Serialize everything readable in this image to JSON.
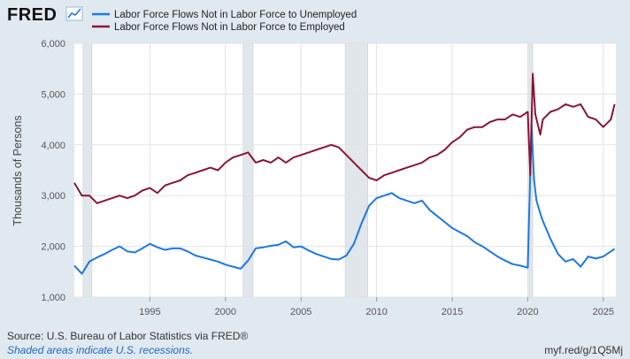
{
  "header": {
    "logo_text": "FRED",
    "logo_icon": "chart-line-icon"
  },
  "footer": {
    "source": "Source: U.S. Bureau of Labor Statistics via FRED®",
    "note": "Shaded areas indicate U.S. recessions.",
    "short_link": "myf.red/g/1Q5Mj"
  },
  "colors": {
    "background": "#e1e9f0",
    "plot_bg": "#ffffff",
    "grid": "#dfe3e8",
    "recession": "#e1e6ea",
    "unemployed": "#1f78e0",
    "employed": "#8a1538"
  },
  "chart_data": {
    "type": "line",
    "title": "",
    "xlabel": "",
    "ylabel": "Thousands of Persons",
    "xlim": [
      1990.0,
      2025.83
    ],
    "ylim": [
      1000,
      6000
    ],
    "x_ticks": [
      1995,
      2000,
      2005,
      2010,
      2015,
      2020,
      2025
    ],
    "y_ticks": [
      {
        "value": 1000,
        "label": "1,000"
      },
      {
        "value": 2000,
        "label": "2,000"
      },
      {
        "value": 3000,
        "label": "3,000"
      },
      {
        "value": 4000,
        "label": "4,000"
      },
      {
        "value": 5000,
        "label": "5,000"
      },
      {
        "value": 6000,
        "label": "6,000"
      }
    ],
    "grid": true,
    "legend_position": "top-left",
    "recessions": [
      {
        "start": 1990.58,
        "end": 1991.17
      },
      {
        "start": 2001.17,
        "end": 2001.83
      },
      {
        "start": 2007.92,
        "end": 2009.42
      },
      {
        "start": 2020.08,
        "end": 2020.33
      }
    ],
    "series": [
      {
        "name": "Labor Force Flows Not in Labor Force to Unemployed",
        "color": "#1f78e0",
        "points": [
          [
            1990.0,
            1620
          ],
          [
            1990.5,
            1460
          ],
          [
            1991.0,
            1700
          ],
          [
            1991.5,
            1780
          ],
          [
            1992.0,
            1850
          ],
          [
            1992.5,
            1930
          ],
          [
            1993.0,
            2000
          ],
          [
            1993.5,
            1900
          ],
          [
            1994.0,
            1880
          ],
          [
            1994.5,
            1960
          ],
          [
            1995.0,
            2050
          ],
          [
            1995.5,
            1980
          ],
          [
            1996.0,
            1930
          ],
          [
            1996.5,
            1960
          ],
          [
            1997.0,
            1960
          ],
          [
            1997.5,
            1900
          ],
          [
            1998.0,
            1820
          ],
          [
            1998.5,
            1780
          ],
          [
            1999.0,
            1740
          ],
          [
            1999.5,
            1700
          ],
          [
            2000.0,
            1640
          ],
          [
            2000.5,
            1600
          ],
          [
            2001.0,
            1560
          ],
          [
            2001.5,
            1720
          ],
          [
            2002.0,
            1960
          ],
          [
            2002.5,
            1980
          ],
          [
            2003.0,
            2010
          ],
          [
            2003.5,
            2030
          ],
          [
            2004.0,
            2100
          ],
          [
            2004.5,
            1980
          ],
          [
            2005.0,
            2000
          ],
          [
            2005.5,
            1920
          ],
          [
            2006.0,
            1850
          ],
          [
            2006.5,
            1800
          ],
          [
            2007.0,
            1750
          ],
          [
            2007.5,
            1740
          ],
          [
            2008.0,
            1820
          ],
          [
            2008.5,
            2050
          ],
          [
            2009.0,
            2450
          ],
          [
            2009.5,
            2800
          ],
          [
            2010.0,
            2950
          ],
          [
            2010.5,
            3000
          ],
          [
            2011.0,
            3050
          ],
          [
            2011.5,
            2950
          ],
          [
            2012.0,
            2900
          ],
          [
            2012.5,
            2850
          ],
          [
            2013.0,
            2900
          ],
          [
            2013.5,
            2720
          ],
          [
            2014.0,
            2600
          ],
          [
            2014.5,
            2480
          ],
          [
            2015.0,
            2360
          ],
          [
            2015.5,
            2280
          ],
          [
            2016.0,
            2200
          ],
          [
            2016.5,
            2080
          ],
          [
            2017.0,
            2000
          ],
          [
            2017.5,
            1900
          ],
          [
            2018.0,
            1800
          ],
          [
            2018.5,
            1720
          ],
          [
            2019.0,
            1650
          ],
          [
            2019.5,
            1620
          ],
          [
            2020.0,
            1580
          ],
          [
            2020.25,
            4400
          ],
          [
            2020.42,
            3300
          ],
          [
            2020.58,
            2900
          ],
          [
            2020.83,
            2650
          ],
          [
            2021.0,
            2500
          ],
          [
            2021.5,
            2150
          ],
          [
            2022.0,
            1850
          ],
          [
            2022.5,
            1700
          ],
          [
            2023.0,
            1750
          ],
          [
            2023.5,
            1600
          ],
          [
            2024.0,
            1800
          ],
          [
            2024.5,
            1760
          ],
          [
            2025.0,
            1800
          ],
          [
            2025.5,
            1900
          ],
          [
            2025.75,
            1950
          ]
        ]
      },
      {
        "name": "Labor Force Flows Not in Labor Force to Employed",
        "color": "#8a1538",
        "points": [
          [
            1990.0,
            3250
          ],
          [
            1990.5,
            3000
          ],
          [
            1991.0,
            3000
          ],
          [
            1991.5,
            2850
          ],
          [
            1992.0,
            2900
          ],
          [
            1992.5,
            2950
          ],
          [
            1993.0,
            3000
          ],
          [
            1993.5,
            2950
          ],
          [
            1994.0,
            3000
          ],
          [
            1994.5,
            3100
          ],
          [
            1995.0,
            3150
          ],
          [
            1995.5,
            3050
          ],
          [
            1996.0,
            3200
          ],
          [
            1996.5,
            3250
          ],
          [
            1997.0,
            3300
          ],
          [
            1997.5,
            3400
          ],
          [
            1998.0,
            3450
          ],
          [
            1998.5,
            3500
          ],
          [
            1999.0,
            3550
          ],
          [
            1999.5,
            3500
          ],
          [
            2000.0,
            3650
          ],
          [
            2000.5,
            3750
          ],
          [
            2001.0,
            3800
          ],
          [
            2001.5,
            3850
          ],
          [
            2002.0,
            3650
          ],
          [
            2002.5,
            3700
          ],
          [
            2003.0,
            3650
          ],
          [
            2003.5,
            3750
          ],
          [
            2004.0,
            3650
          ],
          [
            2004.5,
            3750
          ],
          [
            2005.0,
            3800
          ],
          [
            2005.5,
            3850
          ],
          [
            2006.0,
            3900
          ],
          [
            2006.5,
            3950
          ],
          [
            2007.0,
            4000
          ],
          [
            2007.5,
            3950
          ],
          [
            2008.0,
            3800
          ],
          [
            2008.5,
            3650
          ],
          [
            2009.0,
            3500
          ],
          [
            2009.5,
            3350
          ],
          [
            2010.0,
            3300
          ],
          [
            2010.5,
            3400
          ],
          [
            2011.0,
            3450
          ],
          [
            2011.5,
            3500
          ],
          [
            2012.0,
            3550
          ],
          [
            2012.5,
            3600
          ],
          [
            2013.0,
            3650
          ],
          [
            2013.5,
            3750
          ],
          [
            2014.0,
            3800
          ],
          [
            2014.5,
            3900
          ],
          [
            2015.0,
            4050
          ],
          [
            2015.5,
            4150
          ],
          [
            2016.0,
            4300
          ],
          [
            2016.5,
            4350
          ],
          [
            2017.0,
            4350
          ],
          [
            2017.5,
            4450
          ],
          [
            2018.0,
            4500
          ],
          [
            2018.5,
            4500
          ],
          [
            2019.0,
            4600
          ],
          [
            2019.5,
            4550
          ],
          [
            2020.0,
            4650
          ],
          [
            2020.17,
            3400
          ],
          [
            2020.33,
            5400
          ],
          [
            2020.5,
            4600
          ],
          [
            2020.83,
            4200
          ],
          [
            2021.0,
            4500
          ],
          [
            2021.5,
            4650
          ],
          [
            2022.0,
            4700
          ],
          [
            2022.5,
            4800
          ],
          [
            2023.0,
            4750
          ],
          [
            2023.5,
            4800
          ],
          [
            2024.0,
            4550
          ],
          [
            2024.5,
            4500
          ],
          [
            2025.0,
            4350
          ],
          [
            2025.5,
            4500
          ],
          [
            2025.75,
            4800
          ]
        ]
      }
    ]
  }
}
